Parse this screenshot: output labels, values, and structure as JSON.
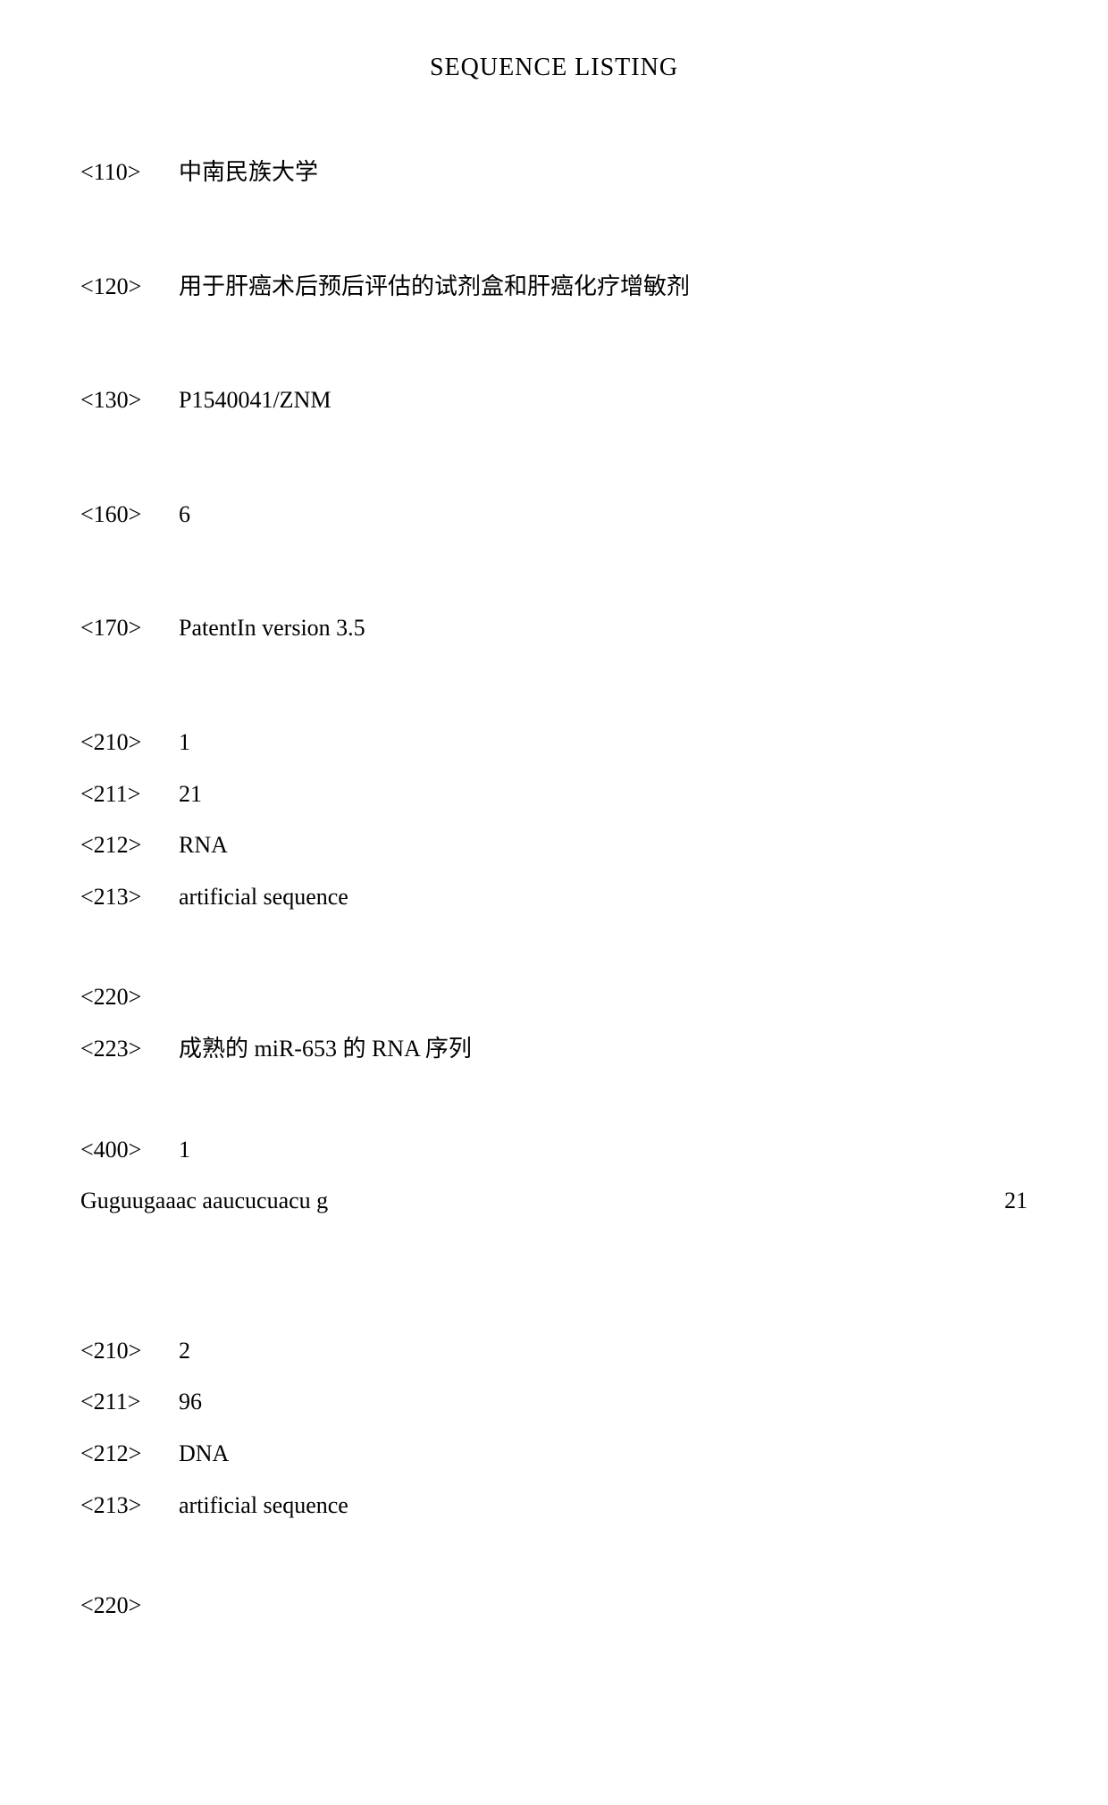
{
  "title": "SEQUENCE LISTING",
  "header": {
    "tag110": "<110>",
    "val110": "中南民族大学",
    "tag120": "<120>",
    "val120": "用于肝癌术后预后评估的试剂盒和肝癌化疗增敏剂",
    "tag130": "<130>",
    "val130": "P1540041/ZNM",
    "tag160": "<160>",
    "val160": "6",
    "tag170": "<170>",
    "val170": "PatentIn version 3.5"
  },
  "seq1": {
    "tag210": "<210>",
    "val210": "1",
    "tag211": "<211>",
    "val211": "21",
    "tag212": "<212>",
    "val212": "RNA",
    "tag213": "<213>",
    "val213": "artificial sequence",
    "tag220": "<220>",
    "tag223": "<223>",
    "val223": "成熟的 miR-653 的 RNA 序列",
    "tag400": "<400>",
    "val400": "1",
    "sequence": "Guguugaaac aaucucuacu g",
    "length": "21"
  },
  "seq2": {
    "tag210": "<210>",
    "val210": "2",
    "tag211": "<211>",
    "val211": "96",
    "tag212": "<212>",
    "val212": "DNA",
    "tag213": "<213>",
    "val213": "artificial sequence",
    "tag220": "<220>"
  }
}
